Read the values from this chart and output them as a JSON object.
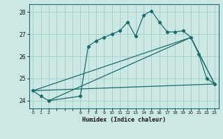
{
  "xlabel": "Humidex (Indice chaleur)",
  "background_color": "#cce8e4",
  "grid_color": "#aacfca",
  "line_color": "#1a6b6b",
  "xlim": [
    -0.5,
    23.5
  ],
  "ylim": [
    23.65,
    28.35
  ],
  "yticks": [
    24,
    25,
    26,
    27,
    28
  ],
  "xticks": [
    0,
    1,
    2,
    3,
    4,
    5,
    6,
    7,
    8,
    9,
    10,
    11,
    12,
    13,
    14,
    15,
    16,
    17,
    18,
    19,
    20,
    21,
    22,
    23
  ],
  "xticklabels": [
    "0",
    "1",
    "2",
    "",
    "",
    "",
    "6",
    "7",
    "8",
    "9",
    "10",
    "11",
    "12",
    "13",
    "14",
    "15",
    "16",
    "17",
    "18",
    "19",
    "20",
    "21",
    "22",
    "23"
  ],
  "line1_x": [
    0,
    1,
    2,
    6,
    7,
    8,
    9,
    10,
    11,
    12,
    13,
    14,
    15,
    16,
    17,
    18,
    19,
    20,
    21,
    22,
    23
  ],
  "line1_y": [
    24.45,
    24.2,
    24.0,
    24.2,
    26.45,
    26.7,
    26.85,
    27.0,
    27.15,
    27.55,
    26.9,
    27.85,
    28.05,
    27.55,
    27.1,
    27.1,
    27.15,
    26.85,
    26.1,
    25.0,
    24.75
  ],
  "line2_x": [
    0,
    23
  ],
  "line2_y": [
    24.45,
    24.75
  ],
  "line3_x": [
    0,
    20,
    23
  ],
  "line3_y": [
    24.45,
    26.85,
    24.75
  ],
  "line4_x": [
    2,
    20,
    23
  ],
  "line4_y": [
    24.0,
    26.85,
    24.75
  ]
}
